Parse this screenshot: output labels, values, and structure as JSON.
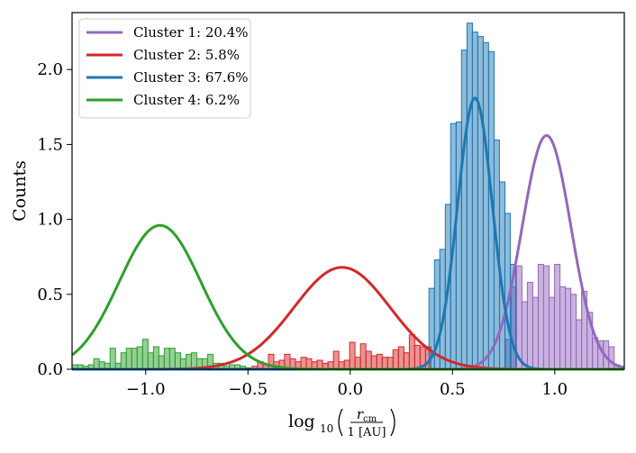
{
  "chart_data": {
    "type": "histogram",
    "xlabel": "log10 ( r_cm / 1 [AU] )",
    "xlabel_parts": {
      "main": "log",
      "sub": "10",
      "num": "r",
      "num_sub": "cm",
      "den": "1 [AU]"
    },
    "ylabel": "Counts",
    "xlim": [
      -1.36,
      1.34
    ],
    "ylim": [
      0,
      2.38
    ],
    "xticks": [
      -1.0,
      -0.5,
      0.0,
      0.5,
      1.0
    ],
    "xtick_labels": [
      "−1.0",
      "−0.5",
      "0.0",
      "0.5",
      "1.0"
    ],
    "yticks": [
      0,
      0.5,
      1.0,
      1.5,
      2.0
    ],
    "ytick_labels": [
      "0.0",
      "0.5",
      "1.0",
      "1.5",
      "2.0"
    ],
    "grid": false,
    "legend_position": "top-left",
    "bin_width": 0.0265,
    "series": [
      {
        "name": "Cluster 1: 20.4%",
        "color": "#9467bd",
        "gaussian": {
          "mean": 0.96,
          "sigma": 0.12,
          "peak": 1.56
        },
        "bins": [
          [
            0.76,
            0.2
          ],
          [
            0.787,
            0.55
          ],
          [
            0.813,
            0.69
          ],
          [
            0.84,
            0.45
          ],
          [
            0.866,
            0.58
          ],
          [
            0.893,
            0.48
          ],
          [
            0.919,
            0.7
          ],
          [
            0.946,
            0.69
          ],
          [
            0.972,
            0.48
          ],
          [
            0.999,
            0.7
          ],
          [
            1.025,
            0.55
          ],
          [
            1.052,
            0.54
          ],
          [
            1.078,
            0.5
          ],
          [
            1.105,
            0.33
          ],
          [
            1.131,
            0.52
          ],
          [
            1.158,
            0.38
          ],
          [
            1.184,
            0.21
          ],
          [
            1.211,
            0.19
          ],
          [
            1.237,
            0.19
          ],
          [
            1.264,
            0.15
          ],
          [
            1.29,
            0.03
          ],
          [
            1.317,
            0.02
          ]
        ]
      },
      {
        "name": "Cluster 2: 5.8%",
        "color": "#d62728",
        "gaussian": {
          "mean": -0.04,
          "sigma": 0.235,
          "peak": 0.68
        },
        "bins": [
          [
            -0.48,
            0.02
          ],
          [
            -0.453,
            0.05
          ],
          [
            -0.427,
            0.03
          ],
          [
            -0.4,
            0.1
          ],
          [
            -0.374,
            0.05
          ],
          [
            -0.347,
            0.06
          ],
          [
            -0.321,
            0.1
          ],
          [
            -0.294,
            0.07
          ],
          [
            -0.268,
            0.05
          ],
          [
            -0.241,
            0.08
          ],
          [
            -0.215,
            0.07
          ],
          [
            -0.188,
            0.05
          ],
          [
            -0.162,
            0.06
          ],
          [
            -0.135,
            0.04
          ],
          [
            -0.109,
            0.05
          ],
          [
            -0.082,
            0.12
          ],
          [
            -0.056,
            0.05
          ],
          [
            -0.029,
            0.06
          ],
          [
            -0.003,
            0.18
          ],
          [
            0.024,
            0.08
          ],
          [
            0.05,
            0.17
          ],
          [
            0.077,
            0.12
          ],
          [
            0.103,
            0.09
          ],
          [
            0.13,
            0.1
          ],
          [
            0.156,
            0.08
          ],
          [
            0.183,
            0.08
          ],
          [
            0.209,
            0.13
          ],
          [
            0.236,
            0.15
          ],
          [
            0.262,
            0.11
          ],
          [
            0.289,
            0.23
          ],
          [
            0.315,
            0.16
          ],
          [
            0.342,
            0.15
          ],
          [
            0.368,
            0.15
          ]
        ]
      },
      {
        "name": "Cluster 3: 67.6%",
        "color": "#1f77b4",
        "gaussian": {
          "mean": 0.61,
          "sigma": 0.085,
          "peak": 1.81
        },
        "bins": [
          [
            0.385,
            0.54
          ],
          [
            0.412,
            0.73
          ],
          [
            0.438,
            0.8
          ],
          [
            0.465,
            1.1
          ],
          [
            0.491,
            1.64
          ],
          [
            0.518,
            1.65
          ],
          [
            0.544,
            2.13
          ],
          [
            0.571,
            2.31
          ],
          [
            0.597,
            2.25
          ],
          [
            0.624,
            2.22
          ],
          [
            0.65,
            2.18
          ],
          [
            0.677,
            2.12
          ],
          [
            0.703,
            1.53
          ],
          [
            0.73,
            1.25
          ],
          [
            0.756,
            1.04
          ],
          [
            0.783,
            0.7
          ]
        ]
      },
      {
        "name": "Cluster 4: 6.2%",
        "color": "#2ca02c",
        "gaussian": {
          "mean": -0.93,
          "sigma": 0.2,
          "peak": 0.96
        },
        "bins": [
          [
            -1.36,
            0.03
          ],
          [
            -1.333,
            0.03
          ],
          [
            -1.307,
            0.02
          ],
          [
            -1.28,
            0.03
          ],
          [
            -1.254,
            0.07
          ],
          [
            -1.227,
            0.05
          ],
          [
            -1.201,
            0.04
          ],
          [
            -1.174,
            0.14
          ],
          [
            -1.148,
            0.04
          ],
          [
            -1.121,
            0.11
          ],
          [
            -1.095,
            0.14
          ],
          [
            -1.068,
            0.14
          ],
          [
            -1.042,
            0.15
          ],
          [
            -1.015,
            0.2
          ],
          [
            -0.989,
            0.11
          ],
          [
            -0.962,
            0.15
          ],
          [
            -0.936,
            0.09
          ],
          [
            -0.909,
            0.14
          ],
          [
            -0.883,
            0.14
          ],
          [
            -0.856,
            0.11
          ],
          [
            -0.83,
            0.07
          ],
          [
            -0.803,
            0.1
          ],
          [
            -0.777,
            0.11
          ],
          [
            -0.75,
            0.07
          ],
          [
            -0.724,
            0.07
          ],
          [
            -0.697,
            0.1
          ],
          [
            -0.671,
            0.04
          ],
          [
            -0.644,
            0.04
          ],
          [
            -0.618,
            0.02
          ],
          [
            -0.591,
            0.03
          ],
          [
            -0.565,
            0.03
          ],
          [
            -0.538,
            0.02
          ],
          [
            -0.512,
            0.01
          ]
        ]
      }
    ]
  }
}
